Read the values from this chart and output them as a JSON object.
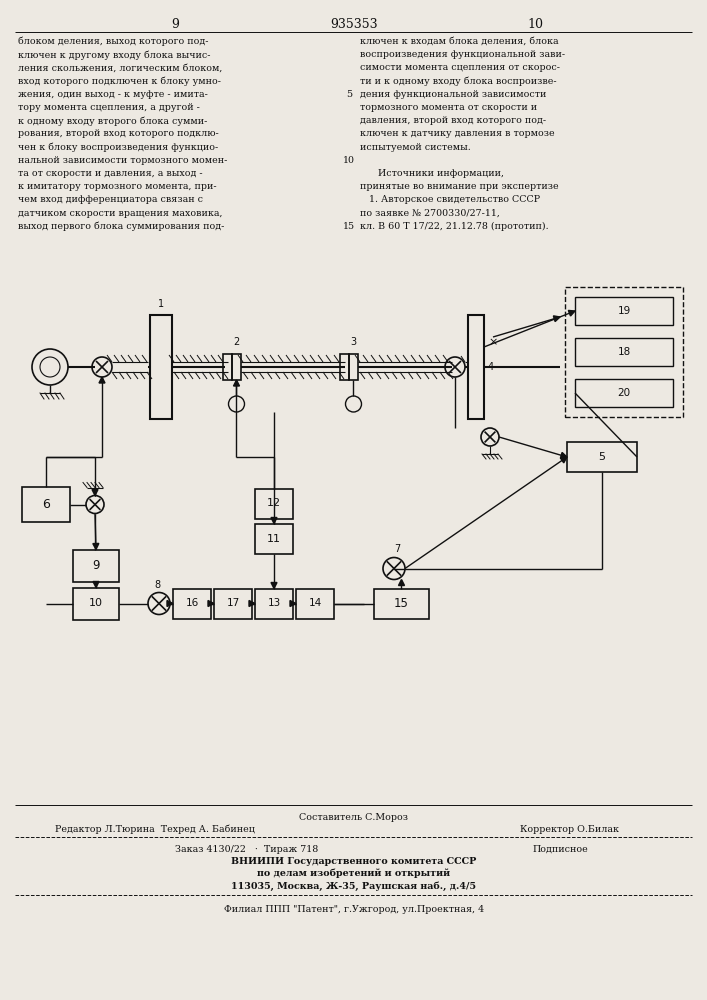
{
  "page_left": "9",
  "patent": "935353",
  "page_right": "10",
  "bg_color": "#ede9e2",
  "lc": "#111111",
  "left_lines": [
    "блоком деления, выход которого под-",
    "ключен к другому входу блока вычис-",
    "ления скольжения, логическим блоком,",
    "вход которого подключен к блоку умно-",
    "жения, один выход - к муфте - имита-",
    "тору момента сцепления, а другой -",
    "к одному входу второго блока сумми-",
    "рования, второй вход которого подклю-",
    "чен к блоку воспроизведения функцио-",
    "нальной зависимости тормозного момен-",
    "та от скорости и давления, а выход -",
    "к имитатору тормозного момента, при-",
    "чем вход дифференциатора связан с",
    "датчиком скорости вращения маховика,",
    "выход первого блока суммирования под-"
  ],
  "right_lines": [
    "ключен к входам блока деления, блока",
    "воспроизведения функциональной зави-",
    "симости момента сцепления от скорос-",
    "ти и к одному входу блока воспроизве-",
    "дения функциональной зависимости",
    "тормозного момента от скорости и",
    "давления, второй вход которого под-",
    "ключен к датчику давления в тормозе",
    "испытуемой системы.",
    "",
    "      Источники информации,",
    "принятые во внимание при экспертизе",
    "   1. Авторское свидетельство СССР",
    "по заявке № 2700330/27-11,",
    "кл. В 60 Т 17/22, 21.12.78 (прототип)."
  ],
  "line_nums": {
    "4": "5",
    "9": "10",
    "14": "15"
  },
  "footer_author": "Составитель С.Мороз",
  "footer_editor": "Редактор Л.Тюрина  Техред А. Бабинец",
  "footer_corrector": "Корректор О.Билак",
  "footer_order": "Заказ 4130/22   ·  Тираж 718",
  "footer_sub": "Подписное",
  "footer_org1": "ВНИИПИ Государственного комитета СССР",
  "footer_org2": "по делам изобретений и открытий",
  "footer_addr": "113035, Москва, Ж-35, Раушская наб., д.4/5",
  "footer_filial": "Филиал ППП \"Патент\", г.Ужгород, ул.Проектная, 4"
}
